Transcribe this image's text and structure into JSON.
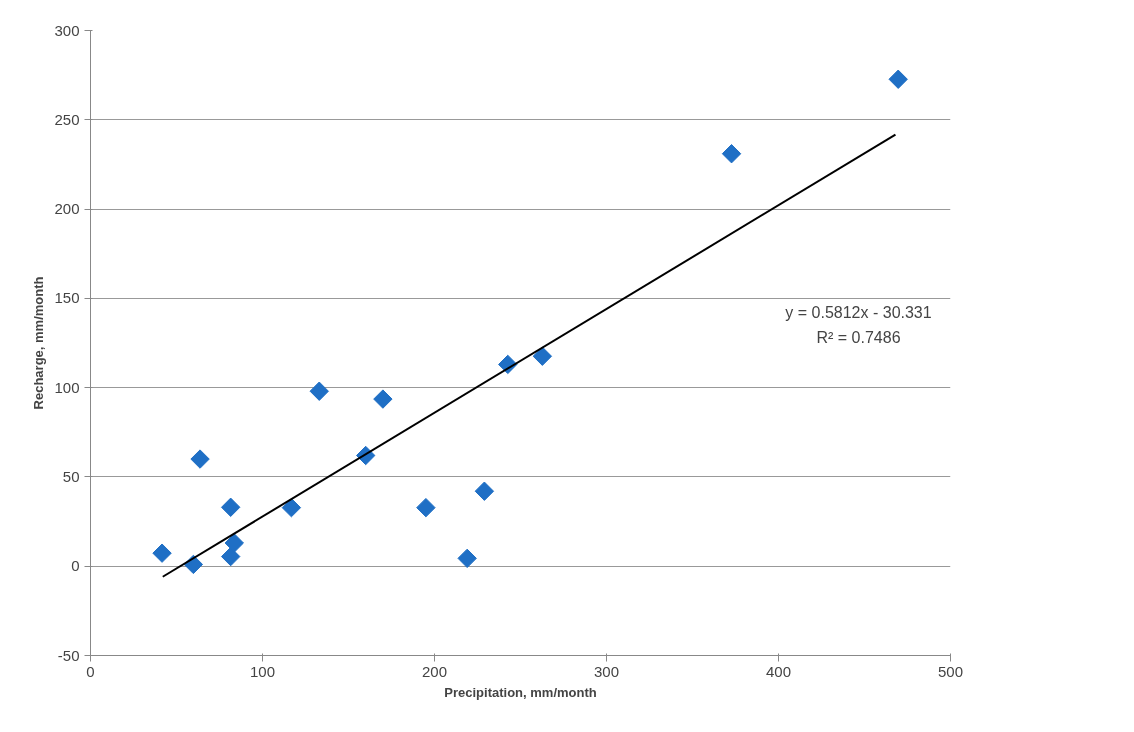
{
  "chart_data": {
    "type": "scatter",
    "xlabel": "Precipitation, mm/month",
    "ylabel": "Recharge, mm/month",
    "xlim": [
      0,
      500
    ],
    "xticks": [
      0,
      100,
      200,
      300,
      400,
      500
    ],
    "ylim": [
      -50,
      300
    ],
    "yticks": [
      -50,
      0,
      50,
      100,
      150,
      200,
      250,
      300
    ],
    "grid": "y",
    "series": [
      {
        "marker": "diamond",
        "color": "#1f6fc5",
        "x": [
          41.6,
          59.8,
          63.7,
          81.5,
          81.5,
          83.6,
          116.8,
          133,
          160,
          170,
          195,
          219,
          229,
          242.6,
          262.7,
          372.7,
          469.6
        ],
        "values": [
          7.3,
          1,
          60,
          33,
          5.4,
          13,
          32.8,
          98,
          62,
          93.6,
          32.8,
          4.4,
          42,
          113,
          117.6,
          231,
          272.7
        ]
      },
      {
        "type": "line",
        "color": "#000000",
        "x": [
          42,
          468
        ],
        "values": [
          -5.9,
          241.7
        ]
      }
    ],
    "annotations": [
      "y = 0.5812x - 30.331",
      "R² = 0.7486"
    ]
  }
}
